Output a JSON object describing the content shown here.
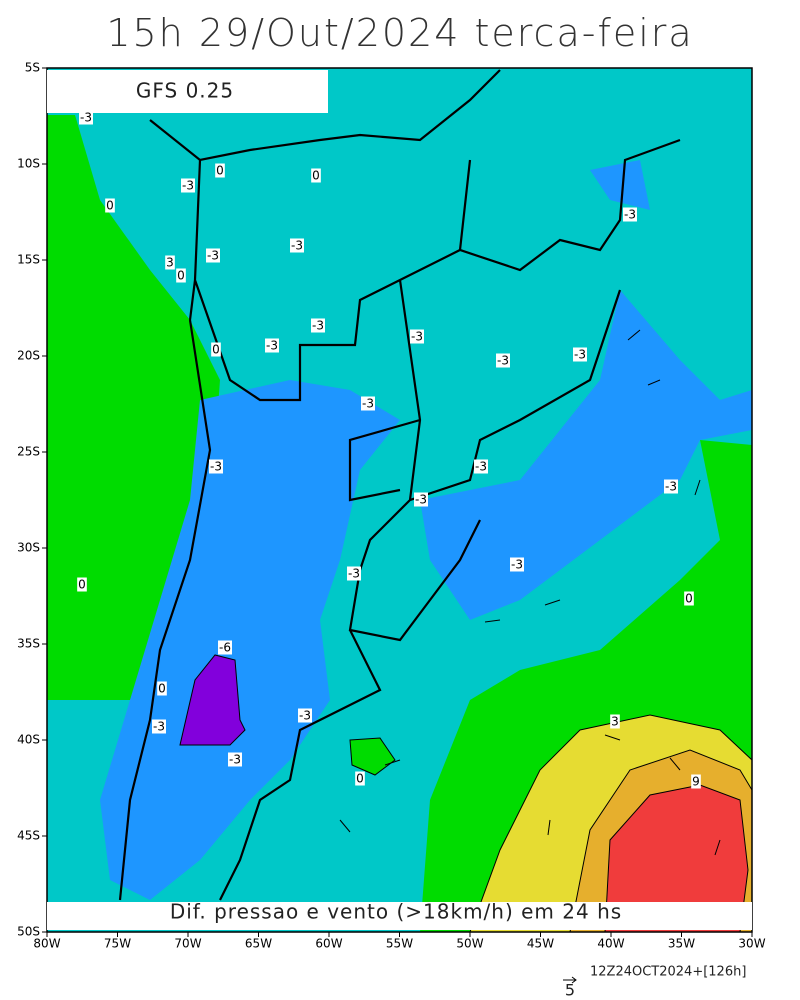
{
  "title": "15h 29/Out/2024 terca-feira",
  "model_label": "GFS 0.25",
  "caption": "Dif. pressao e vento (>18km/h) em 24 hs",
  "run_info": "12Z24OCT2024+[126h]",
  "reference_vector": "5",
  "lat_ticks": [
    "5S",
    "10S",
    "15S",
    "20S",
    "25S",
    "30S",
    "35S",
    "40S",
    "45S",
    "50S"
  ],
  "lon_ticks": [
    "80W",
    "75W",
    "70W",
    "65W",
    "60W",
    "55W",
    "50W",
    "45W",
    "40W",
    "35W",
    "30W"
  ],
  "contour_labels": [
    "-3",
    "0",
    "-3",
    "0",
    "0",
    "-3",
    "-3",
    "-3",
    "3",
    "0",
    "-3",
    "-3",
    "0",
    "-3",
    "-3",
    "-3",
    "-3",
    "-3",
    "-3",
    "-3",
    "-3",
    "-3",
    "-3",
    "0",
    "0",
    "-6",
    "0",
    "-3",
    "-3",
    "3",
    "-3",
    "9",
    "0"
  ]
}
